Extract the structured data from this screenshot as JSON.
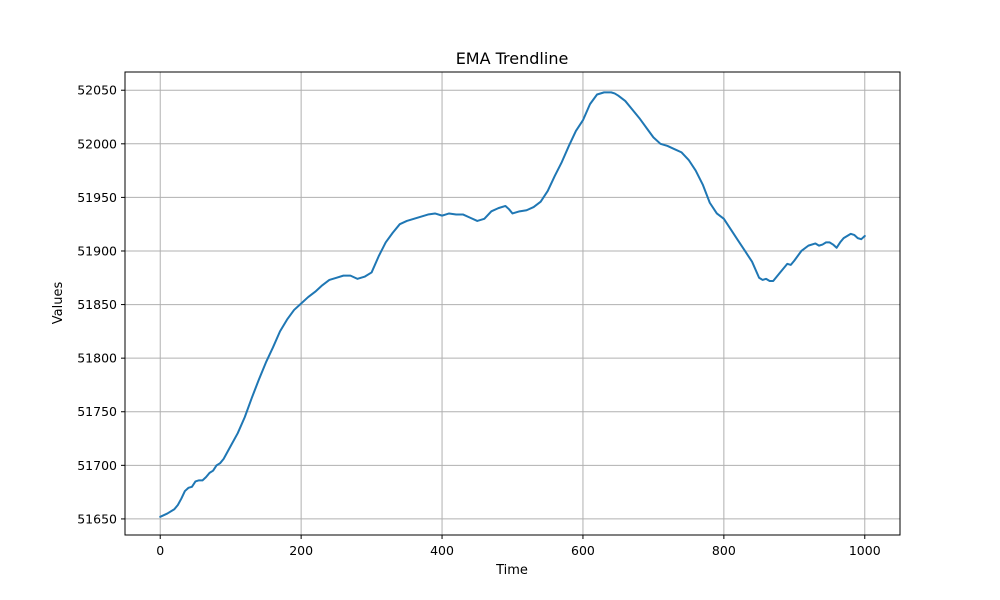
{
  "chart_data": {
    "type": "line",
    "title": "EMA Trendline",
    "xlabel": "Time",
    "ylabel": "Values",
    "xlim": [
      -50,
      1050
    ],
    "ylim": [
      51635,
      52067
    ],
    "grid": true,
    "x_ticks": [
      0,
      200,
      400,
      600,
      800,
      1000
    ],
    "y_ticks": [
      51650,
      51700,
      51750,
      51800,
      51850,
      51900,
      51950,
      52000,
      52050
    ],
    "series": [
      {
        "color": "#1f77b4",
        "x": [
          0,
          10,
          20,
          25,
          30,
          35,
          40,
          45,
          50,
          55,
          60,
          65,
          70,
          75,
          80,
          85,
          90,
          100,
          110,
          120,
          130,
          140,
          150,
          160,
          170,
          180,
          190,
          200,
          210,
          220,
          230,
          240,
          250,
          260,
          270,
          280,
          290,
          300,
          310,
          320,
          330,
          340,
          350,
          360,
          370,
          380,
          390,
          400,
          405,
          410,
          420,
          430,
          440,
          450,
          460,
          470,
          480,
          490,
          495,
          500,
          510,
          520,
          530,
          540,
          550,
          560,
          570,
          580,
          590,
          600,
          610,
          620,
          630,
          640,
          645,
          650,
          660,
          670,
          680,
          690,
          700,
          710,
          720,
          730,
          740,
          750,
          760,
          770,
          780,
          790,
          800,
          810,
          820,
          830,
          840,
          850,
          855,
          860,
          865,
          870,
          880,
          890,
          895,
          900,
          910,
          920,
          930,
          935,
          940,
          945,
          950,
          955,
          960,
          965,
          970,
          980,
          985,
          990,
          995,
          1000
        ],
        "y": [
          51652,
          51655,
          51659,
          51663,
          51669,
          51676,
          51679,
          51680,
          51685,
          51686,
          51686,
          51689,
          51693,
          51695,
          51700,
          51702,
          51706,
          51718,
          51730,
          51745,
          51763,
          51780,
          51796,
          51810,
          51825,
          51836,
          51845,
          51851,
          51857,
          51862,
          51868,
          51873,
          51875,
          51877,
          51877,
          51874,
          51876,
          51880,
          51895,
          51908,
          51917,
          51925,
          51928,
          51930,
          51932,
          51934,
          51935,
          51933,
          51934,
          51935,
          51934,
          51934,
          51931,
          51928,
          51930,
          51937,
          51940,
          51942,
          51939,
          51935,
          51937,
          51938,
          51941,
          51946,
          51956,
          51970,
          51983,
          51998,
          52012,
          52022,
          52037,
          52046,
          52048,
          52048,
          52047,
          52045,
          52040,
          52032,
          52024,
          52015,
          52006,
          52000,
          51998,
          51995,
          51992,
          51985,
          51975,
          51962,
          51945,
          51935,
          51930,
          51920,
          51910,
          51900,
          51890,
          51875,
          51873,
          51874,
          51872,
          51872,
          51880,
          51888,
          51887,
          51891,
          51900,
          51905,
          51907,
          51905,
          51906,
          51908,
          51908,
          51906,
          51903,
          51908,
          51912,
          51916,
          51915,
          51912,
          51911,
          51914
        ]
      }
    ]
  }
}
